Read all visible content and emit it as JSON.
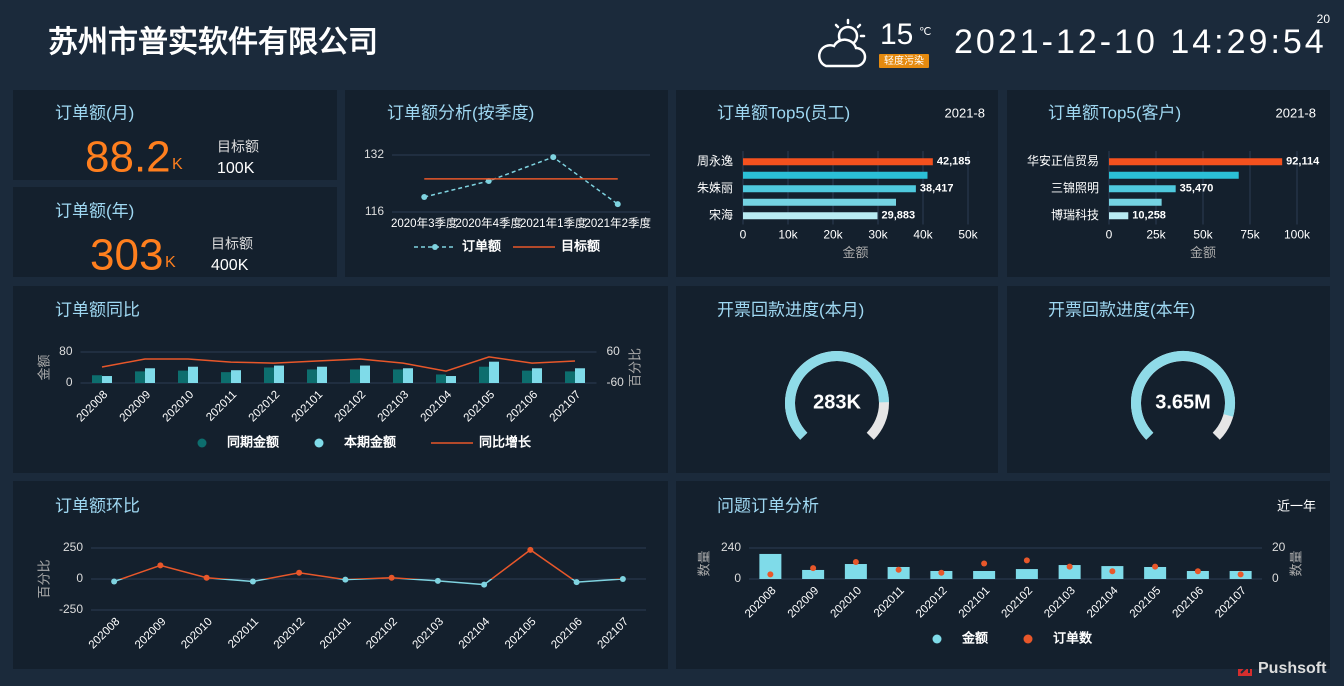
{
  "header": {
    "title": "苏州市普实软件有限公司",
    "temperature": "15",
    "temp_unit": "℃",
    "air_quality": "轻度污染",
    "datetime": "2021-12-10 14:29:54",
    "badge": "20"
  },
  "kpis": [
    {
      "title": "订单额(月)",
      "value": "88.2",
      "unit": "K",
      "target_label": "目标额",
      "target": "100K"
    },
    {
      "title": "订单额(年)",
      "value": "303",
      "unit": "K",
      "target_label": "目标额",
      "target": "400K"
    }
  ],
  "chart_data": [
    {
      "type": "line",
      "title": "订单额分析(按季度)",
      "categories": [
        "2020年3季度",
        "2020年4季度",
        "2021年1季度",
        "2021年2季度"
      ],
      "series": [
        {
          "name": "订单额",
          "color": "#7fd3e0",
          "style": "dashed",
          "markers": true,
          "values": [
            120.2,
            124.7,
            131.4,
            118.2
          ]
        },
        {
          "name": "目标额",
          "color": "#e8572a",
          "style": "solid",
          "markers": false,
          "values": [
            125.3,
            125.3,
            125.3,
            125.3
          ]
        }
      ],
      "ylim": [
        116,
        132
      ],
      "yticks": [
        116,
        132
      ],
      "grid": true
    },
    {
      "type": "hbar",
      "title": "订单额Top5(员工)",
      "subtitle": "2021-8",
      "categories": [
        "周永逸",
        null,
        "朱姝丽",
        null,
        "宋海"
      ],
      "values": [
        42185,
        41000,
        38417,
        34000,
        29883
      ],
      "value_labels": [
        "42,185",
        null,
        "38,417",
        null,
        "29,883"
      ],
      "colors": [
        "#f4511e",
        "#2bc0d6",
        "#4fc9dd",
        "#75d3e2",
        "#b9ebf2"
      ],
      "xlim": [
        0,
        50000
      ],
      "xticks": [
        0,
        {
          "value": 10000,
          "label": "10k"
        },
        {
          "value": 20000,
          "label": "20k"
        },
        {
          "value": 30000,
          "label": "30k"
        },
        {
          "value": 40000,
          "label": "40k"
        },
        {
          "value": 50000,
          "label": "50k"
        }
      ],
      "xlabel": "金额",
      "grid": true
    },
    {
      "type": "hbar",
      "title": "订单额Top5(客户)",
      "subtitle": "2021-8",
      "categories": [
        "华安正信贸易",
        null,
        "三锦照明",
        null,
        "博瑞科技"
      ],
      "values": [
        92114,
        69000,
        35470,
        28000,
        10258
      ],
      "value_labels": [
        "92,114",
        null,
        "35,470",
        null,
        "10,258"
      ],
      "colors": [
        "#f4511e",
        "#2bc0d6",
        "#4fc9dd",
        "#75d3e2",
        "#b9ebf2"
      ],
      "xlim": [
        0,
        100000
      ],
      "xticks": [
        0,
        {
          "value": 25000,
          "label": "25k"
        },
        {
          "value": 50000,
          "label": "50k"
        },
        {
          "value": 75000,
          "label": "75k"
        },
        {
          "value": 100000,
          "label": "100k"
        }
      ],
      "xlabel": "金额",
      "grid": true
    },
    {
      "type": "combo",
      "title": "订单额同比",
      "categories": [
        "202008",
        "202009",
        "202010",
        "202011",
        "202012",
        "202101",
        "202102",
        "202103",
        "202104",
        "202105",
        "202106",
        "202107"
      ],
      "series": [
        {
          "name": "同期金额",
          "color": "#0d6e6e",
          "kind": "bar",
          "values": [
            20,
            30,
            32,
            28,
            40,
            35,
            35,
            35,
            22,
            42,
            32,
            30
          ]
        },
        {
          "name": "本期金额",
          "color": "#7fdbe9",
          "kind": "bar",
          "values": [
            18,
            38,
            42,
            33,
            45,
            42,
            45,
            38,
            18,
            55,
            38,
            38
          ]
        },
        {
          "name": "同比增长",
          "color": "#e8572a",
          "kind": "line",
          "axis": "y2",
          "values": [
            2,
            33,
            33,
            21,
            17,
            25,
            33,
            17,
            -14,
            41,
            17,
            25
          ]
        }
      ],
      "ylabel": "金额",
      "y2label": "百分比",
      "ylim": [
        0,
        80
      ],
      "yticks": [
        0,
        80
      ],
      "y2lim": [
        -60,
        60
      ],
      "y2ticks": [
        -60,
        60
      ],
      "grid": true
    },
    {
      "type": "line",
      "title": "订单额环比",
      "categories": [
        "202008",
        "202009",
        "202010",
        "202011",
        "202012",
        "202101",
        "202102",
        "202103",
        "202104",
        "202105",
        "202106",
        "202107"
      ],
      "values": [
        -20,
        110,
        10,
        -20,
        50,
        -5,
        10,
        -15,
        -45,
        235,
        -25,
        0
      ],
      "color": "#7fd3e0",
      "positive_color": "#e8572a",
      "markers": true,
      "ylabel": "百分比",
      "ylim": [
        -250,
        250
      ],
      "yticks": [
        -250,
        0,
        250
      ],
      "grid": true
    },
    {
      "type": "gauge",
      "title": "开票回款进度(本月)",
      "value": 283000,
      "value_label": "283K",
      "percent": 83,
      "color": "#8fdbe8",
      "track_color": "#e6e6e6"
    },
    {
      "type": "gauge",
      "title": "开票回款进度(本年)",
      "value": 3650000,
      "value_label": "3.65M",
      "percent": 89,
      "color": "#8fdbe8",
      "track_color": "#e6e6e6"
    },
    {
      "type": "combo",
      "title": "问题订单分析",
      "subtitle": "近一年",
      "categories": [
        "202008",
        "202009",
        "202010",
        "202011",
        "202012",
        "202101",
        "202102",
        "202103",
        "202104",
        "202105",
        "202106",
        "202107"
      ],
      "series": [
        {
          "name": "金额",
          "color": "#7fdbe9",
          "kind": "bar",
          "values": [
            194,
            70,
            116,
            93,
            62,
            62,
            77,
            108,
            100,
            93,
            62,
            62
          ]
        },
        {
          "name": "订单数",
          "color": "#e8572a",
          "kind": "dot",
          "axis": "y2",
          "values": [
            3,
            7,
            11,
            6,
            4,
            10,
            12,
            8,
            5,
            8,
            5,
            3
          ]
        }
      ],
      "ylabel": "数量",
      "y2label": "数量",
      "ylim": [
        0,
        240
      ],
      "yticks": [
        0,
        240
      ],
      "y2lim": [
        0,
        20
      ],
      "y2ticks": [
        0,
        20
      ],
      "grid": true
    }
  ],
  "footer": {
    "logo": "Pushsoft"
  }
}
